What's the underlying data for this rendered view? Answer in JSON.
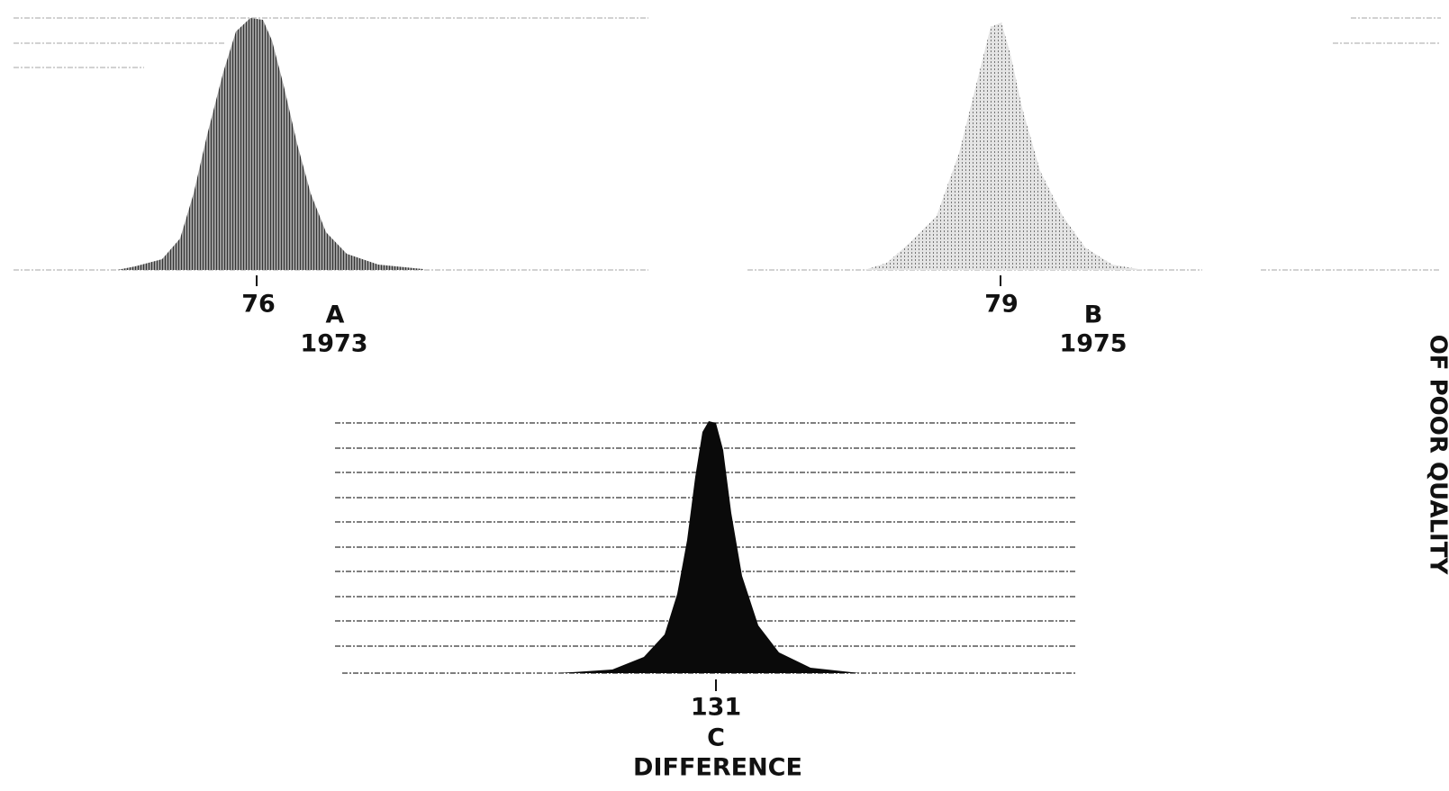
{
  "panels": [
    {
      "peak_label": "76",
      "letter": "A",
      "caption": "1973"
    },
    {
      "peak_label": "79",
      "letter": "B",
      "caption": "1975"
    },
    {
      "peak_label": "131",
      "letter": "C",
      "caption": "DIFFERENCE"
    }
  ],
  "margin_note": "OF POOR QUALITY"
}
